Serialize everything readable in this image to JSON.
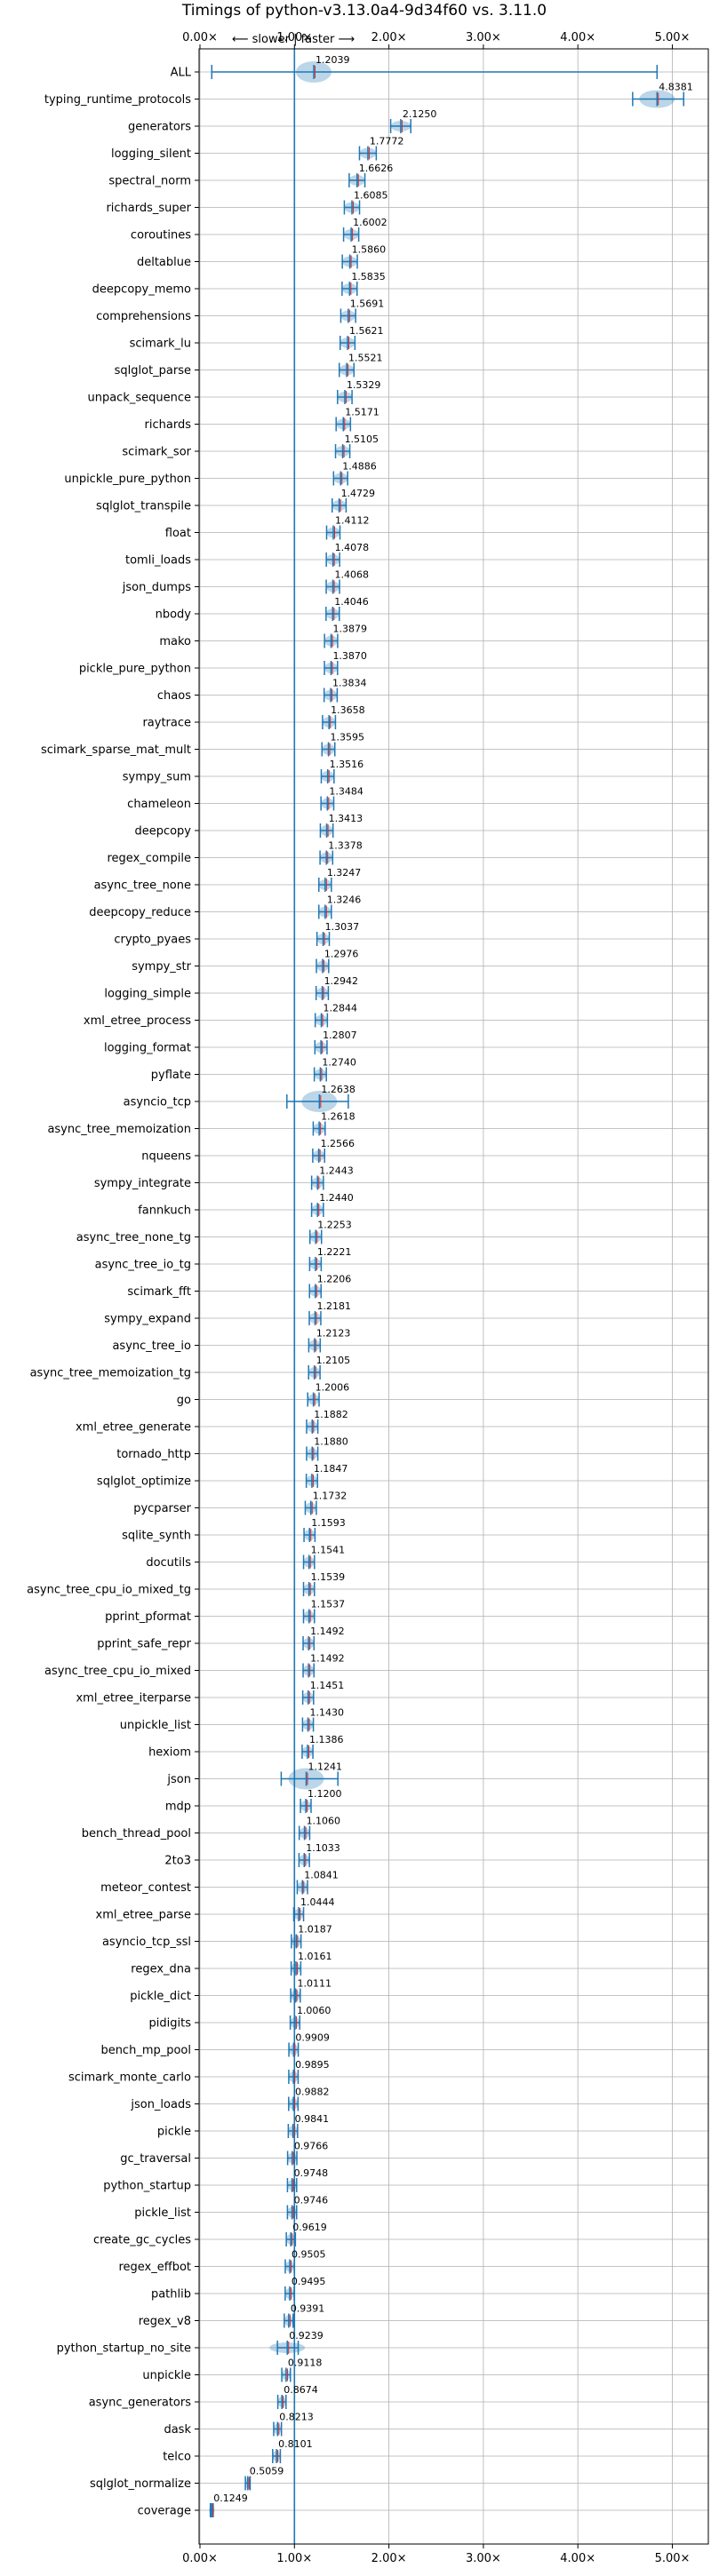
{
  "chart_data": {
    "type": "violin",
    "title": "Timings of python-v3.13.0a4-9d34f60 vs. 3.11.0",
    "direction_label": "⟵ slower | faster ⟶",
    "xlabel": "",
    "ylabel": "",
    "x_ticks": [
      "0.00×",
      "1.00×",
      "2.00×",
      "3.00×",
      "4.00×",
      "5.00×"
    ],
    "xlim": [
      0,
      5.4
    ],
    "grid": true,
    "accent_color": "#1f77b4",
    "median_color": "#d62728",
    "categories": [
      "ALL",
      "typing_runtime_protocols",
      "generators",
      "logging_silent",
      "spectral_norm",
      "richards_super",
      "coroutines",
      "deltablue",
      "deepcopy_memo",
      "comprehensions",
      "scimark_lu",
      "sqlglot_parse",
      "unpack_sequence",
      "richards",
      "scimark_sor",
      "unpickle_pure_python",
      "sqlglot_transpile",
      "float",
      "tomli_loads",
      "json_dumps",
      "nbody",
      "mako",
      "pickle_pure_python",
      "chaos",
      "raytrace",
      "scimark_sparse_mat_mult",
      "sympy_sum",
      "chameleon",
      "deepcopy",
      "regex_compile",
      "async_tree_none",
      "deepcopy_reduce",
      "crypto_pyaes",
      "sympy_str",
      "logging_simple",
      "xml_etree_process",
      "logging_format",
      "pyflate",
      "asyncio_tcp",
      "async_tree_memoization",
      "nqueens",
      "sympy_integrate",
      "fannkuch",
      "async_tree_none_tg",
      "async_tree_io_tg",
      "scimark_fft",
      "sympy_expand",
      "async_tree_io",
      "async_tree_memoization_tg",
      "go",
      "xml_etree_generate",
      "tornado_http",
      "sqlglot_optimize",
      "pycparser",
      "sqlite_synth",
      "docutils",
      "async_tree_cpu_io_mixed_tg",
      "pprint_pformat",
      "pprint_safe_repr",
      "async_tree_cpu_io_mixed",
      "xml_etree_iterparse",
      "unpickle_list",
      "hexiom",
      "json",
      "mdp",
      "bench_thread_pool",
      "2to3",
      "meteor_contest",
      "xml_etree_parse",
      "asyncio_tcp_ssl",
      "regex_dna",
      "pickle_dict",
      "pidigits",
      "bench_mp_pool",
      "scimark_monte_carlo",
      "json_loads",
      "pickle",
      "gc_traversal",
      "python_startup",
      "pickle_list",
      "create_gc_cycles",
      "regex_effbot",
      "pathlib",
      "regex_v8",
      "python_startup_no_site",
      "unpickle",
      "async_generators",
      "dask",
      "telco",
      "sqlglot_normalize",
      "coverage"
    ],
    "values": [
      1.2039,
      4.8381,
      2.125,
      1.7772,
      1.6626,
      1.6085,
      1.6002,
      1.586,
      1.5835,
      1.5691,
      1.5621,
      1.5521,
      1.5329,
      1.5171,
      1.5105,
      1.4886,
      1.4729,
      1.4112,
      1.4078,
      1.4068,
      1.4046,
      1.3879,
      1.387,
      1.3834,
      1.3658,
      1.3595,
      1.3516,
      1.3484,
      1.3413,
      1.3378,
      1.3247,
      1.3246,
      1.3037,
      1.2976,
      1.2942,
      1.2844,
      1.2807,
      1.274,
      1.2638,
      1.2618,
      1.2566,
      1.2443,
      1.244,
      1.2253,
      1.2221,
      1.2206,
      1.2181,
      1.2123,
      1.2105,
      1.2006,
      1.1882,
      1.188,
      1.1847,
      1.1732,
      1.1593,
      1.1541,
      1.1539,
      1.1537,
      1.1492,
      1.1492,
      1.1451,
      1.143,
      1.1386,
      1.1241,
      1.12,
      1.106,
      1.1033,
      1.0841,
      1.0444,
      1.0187,
      1.0161,
      1.0111,
      1.006,
      0.9909,
      0.9895,
      0.9882,
      0.9841,
      0.9766,
      0.9748,
      0.9746,
      0.9619,
      0.9505,
      0.9495,
      0.9391,
      0.9239,
      0.9118,
      0.8674,
      0.8213,
      0.8101,
      0.5059,
      0.1249
    ],
    "value_labels": [
      "1.2039",
      "4.8381",
      "2.1250",
      "1.7772",
      "1.6626",
      "1.6085",
      "1.6002",
      "1.5860",
      "1.5835",
      "1.5691",
      "1.5621",
      "1.5521",
      "1.5329",
      "1.5171",
      "1.5105",
      "1.4886",
      "1.4729",
      "1.4112",
      "1.4078",
      "1.4068",
      "1.4046",
      "1.3879",
      "1.3870",
      "1.3834",
      "1.3658",
      "1.3595",
      "1.3516",
      "1.3484",
      "1.3413",
      "1.3378",
      "1.3247",
      "1.3246",
      "1.3037",
      "1.2976",
      "1.2942",
      "1.2844",
      "1.2807",
      "1.2740",
      "1.2638",
      "1.2618",
      "1.2566",
      "1.2443",
      "1.2440",
      "1.2253",
      "1.2221",
      "1.2206",
      "1.2181",
      "1.2123",
      "1.2105",
      "1.2006",
      "1.1882",
      "1.1880",
      "1.1847",
      "1.1732",
      "1.1593",
      "1.1541",
      "1.1539",
      "1.1537",
      "1.1492",
      "1.1492",
      "1.1451",
      "1.1430",
      "1.1386",
      "1.1241",
      "1.1200",
      "1.1060",
      "1.1033",
      "1.0841",
      "1.0444",
      "1.0187",
      "1.0161",
      "1.0111",
      "1.0060",
      "0.9909",
      "0.9895",
      "0.9882",
      "0.9841",
      "0.9766",
      "0.9748",
      "0.9746",
      "0.9619",
      "0.9505",
      "0.9495",
      "0.9391",
      "0.9239",
      "0.9118",
      "0.8674",
      "0.8213",
      "0.8101",
      "0.5059",
      "0.1249"
    ],
    "ranges": {
      "ALL": [
        0.1249,
        4.8381
      ],
      "typing_runtime_protocols": [
        4.58,
        5.12
      ],
      "asyncio_tcp": [
        0.92,
        1.57
      ],
      "json": [
        0.86,
        1.46
      ],
      "python_startup_no_site": [
        0.82,
        1.04
      ]
    }
  }
}
